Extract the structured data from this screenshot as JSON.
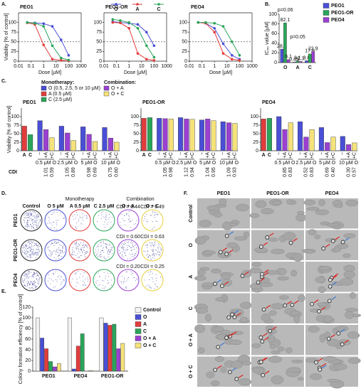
{
  "panels": {
    "a": "A.",
    "b": "B.",
    "c": "C.",
    "d": "D.",
    "e": "E.",
    "f": "F."
  },
  "chart_data": [
    {
      "type": "line",
      "title": "PEO1",
      "xlog": true,
      "x": [
        0.05,
        0.2,
        1,
        5,
        25,
        100
      ],
      "xlim": [
        0.01,
        1000
      ],
      "xticks": [
        0.01,
        0.1,
        1,
        10,
        100,
        1000
      ],
      "ylim": [
        0,
        125
      ],
      "yticks": [
        0,
        25,
        50,
        75,
        100
      ],
      "xlabel": "Dose [μM]",
      "ylabel": "Viability [% of control]",
      "reference_line": 50,
      "series": [
        {
          "color": "#4a4fd6",
          "values": [
            100,
            99,
            97,
            90,
            55,
            15
          ]
        },
        {
          "color": "#e23c3c",
          "values": [
            99,
            95,
            42,
            5,
            2,
            1
          ]
        },
        {
          "color": "#2aa55a",
          "values": [
            100,
            98,
            90,
            40,
            8,
            3
          ]
        }
      ]
    },
    {
      "type": "line",
      "title": "PEO1-OR",
      "xlog": true,
      "x": [
        0.05,
        0.2,
        1,
        5,
        25,
        100
      ],
      "xlim": [
        0.01,
        1000
      ],
      "xticks": [
        0.01,
        0.1,
        1,
        10,
        100,
        1000
      ],
      "ylim": [
        0,
        125
      ],
      "yticks": [
        0,
        25,
        50,
        75,
        100
      ],
      "xlabel": "Dose [μM]",
      "reference_line": 50,
      "series": [
        {
          "name": "O",
          "color": "#4a4fd6",
          "values": [
            102,
            100,
            98,
            95,
            75,
            40
          ]
        },
        {
          "name": "A",
          "color": "#e23c3c",
          "values": [
            100,
            99,
            85,
            20,
            5,
            2
          ]
        },
        {
          "name": "C",
          "color": "#2aa55a",
          "values": [
            108,
            105,
            100,
            85,
            40,
            10
          ]
        }
      ]
    },
    {
      "type": "line",
      "title": "PEO4",
      "xlog": true,
      "x": [
        0.05,
        0.2,
        1,
        5,
        25,
        100
      ],
      "xlim": [
        0.01,
        1000
      ],
      "xticks": [
        0.01,
        0.1,
        1,
        10,
        100,
        1000
      ],
      "ylim": [
        0,
        125
      ],
      "yticks": [
        0,
        25,
        50,
        75,
        100
      ],
      "xlabel": "Dose [μM]",
      "reference_line": 50,
      "series": [
        {
          "color": "#4a4fd6",
          "values": [
            100,
            98,
            85,
            45,
            15,
            5
          ]
        },
        {
          "color": "#e23c3c",
          "values": [
            100,
            98,
            75,
            20,
            5,
            2
          ]
        },
        {
          "color": "#2aa55a",
          "values": [
            100,
            100,
            98,
            90,
            50,
            15
          ]
        }
      ]
    },
    {
      "type": "bar",
      "ylabel": "IC₅₀ value [μM]",
      "categories": [
        "O",
        "A",
        "C"
      ],
      "ylim": [
        0,
        100
      ],
      "yticks": [
        0,
        20,
        40,
        60,
        80,
        100
      ],
      "legend": "right",
      "annotations": [
        "p=0.06",
        "p=0.05"
      ],
      "series": [
        {
          "name": "PEO1",
          "color": "#4a4fd6",
          "values": [
            28.0,
            0.85,
            3.8
          ],
          "value_labels": [
            "28.0",
            "0.85",
            "3.8"
          ]
        },
        {
          "name": "PEO1-OR",
          "color": "#2aa55a",
          "values": [
            82.1,
            3.1,
            17.8
          ],
          "value_labels": [
            "82.1",
            "3.1",
            "17.8"
          ]
        },
        {
          "name": "PEO4",
          "color": "#9b40d2",
          "values": [
            6.1,
            2.3,
            22.9
          ],
          "value_labels": [
            "6.1",
            "2.3",
            "22.9"
          ]
        }
      ]
    },
    {
      "type": "bar",
      "title": "PEO1",
      "ylabel": "Viability [% of control]",
      "ylim": [
        0,
        125
      ],
      "yticks": [
        0,
        25,
        50,
        75,
        100
      ],
      "categories": [
        "A",
        "C",
        "−",
        "+A",
        "+C",
        "−",
        "+A",
        "+C",
        "−",
        "+A",
        "+C",
        "−",
        "+A",
        "+C"
      ],
      "values": [
        72,
        47,
        88,
        62,
        38,
        72,
        52,
        30,
        70,
        48,
        27,
        68,
        37,
        25
      ],
      "colors": [
        "#e23c3c",
        "#2aa55a",
        "#4a4fd6",
        "#9b40d2",
        "#f5e27a",
        "#4a4fd6",
        "#9b40d2",
        "#f5e27a",
        "#4a4fd6",
        "#9b40d2",
        "#f5e27a",
        "#4a4fd6",
        "#9b40d2",
        "#f5e27a"
      ],
      "groups": [
        "0.5 μM O",
        "2.5 μM O",
        "5 μM O",
        "10 μM O"
      ],
      "cdi_label": "CDI",
      "cdi": [
        [
          "1.01",
          "0.59"
        ],
        [
          "1.05",
          "0.89"
        ],
        [
          "0.98",
          "0.69"
        ],
        [
          "0.75",
          "0.60"
        ]
      ],
      "legend": {
        "monotherapy_title": "Monotherapy:",
        "monotherapy": [
          {
            "label": "O (0.5, 2.5, 5 or 10 μM)",
            "color": "#4a4fd6"
          },
          {
            "label": "A (0.5 μM)",
            "color": "#e23c3c"
          },
          {
            "label": "C (2.5 μM)",
            "color": "#2aa55a"
          }
        ],
        "combination_title": "Combination:",
        "combination": [
          {
            "label": "O + A",
            "color": "#9b40d2"
          },
          {
            "label": "O + C",
            "color": "#f5e27a"
          }
        ]
      }
    },
    {
      "type": "bar",
      "title": "PEO1-OR",
      "ylim": [
        0,
        125
      ],
      "yticks": [
        0,
        25,
        50,
        75,
        100
      ],
      "categories": [
        "A",
        "C",
        "−",
        "+A",
        "+C",
        "−",
        "+A",
        "+C",
        "−",
        "+A",
        "+C",
        "−",
        "+A",
        "+C"
      ],
      "values": [
        95,
        97,
        95,
        94,
        93,
        97,
        93,
        92,
        90,
        93,
        88,
        85,
        82,
        80
      ],
      "colors": [
        "#e23c3c",
        "#2aa55a",
        "#4a4fd6",
        "#9b40d2",
        "#f5e27a",
        "#4a4fd6",
        "#9b40d2",
        "#f5e27a",
        "#4a4fd6",
        "#9b40d2",
        "#f5e27a",
        "#4a4fd6",
        "#9b40d2",
        "#f5e27a"
      ],
      "groups": [
        "0.5 μM O",
        "2.5 μM O",
        "5 μM O",
        "10 μM O"
      ],
      "cdi": [
        [
          "1.05",
          "0.98"
        ],
        [
          "1.12",
          "0.94"
        ],
        [
          "1.04",
          "0.95"
        ],
        [
          "1.09",
          "0.93"
        ]
      ]
    },
    {
      "type": "bar",
      "title": "PEO4",
      "ylim": [
        0,
        125
      ],
      "yticks": [
        0,
        25,
        50,
        75,
        100
      ],
      "categories": [
        "A",
        "C",
        "−",
        "+A",
        "+C",
        "−",
        "+A",
        "+C",
        "−",
        "+A",
        "+C",
        "−",
        "+A",
        "+C"
      ],
      "values": [
        93,
        95,
        100,
        62,
        82,
        85,
        40,
        62,
        68,
        24,
        40,
        42,
        18,
        23
      ],
      "colors": [
        "#e23c3c",
        "#2aa55a",
        "#4a4fd6",
        "#9b40d2",
        "#f5e27a",
        "#4a4fd6",
        "#9b40d2",
        "#f5e27a",
        "#4a4fd6",
        "#9b40d2",
        "#f5e27a",
        "#4a4fd6",
        "#9b40d2",
        "#f5e27a"
      ],
      "groups": [
        "0.5 μM O",
        "2.5 μM O",
        "5 μM O",
        "10 μM O"
      ],
      "cdi": [
        [
          "0.85",
          "0.83"
        ],
        [
          "0.52",
          "0.83"
        ],
        [
          "0.69",
          "0.40"
        ],
        [
          "0.30",
          "0.57"
        ]
      ]
    },
    {
      "type": "bar",
      "ylabel": "Colony formation efficiency [% of control]",
      "categories": [
        "PEO1",
        "PEO4",
        "PEO1-OR"
      ],
      "ylim": [
        0,
        120
      ],
      "yticks": [
        0,
        20,
        40,
        60,
        80,
        100,
        120
      ],
      "legend": "right",
      "series": [
        {
          "name": "Control",
          "color": "#f2f2f2",
          "values": [
            100,
            100,
            100
          ]
        },
        {
          "name": "O",
          "color": "#4a4fd6",
          "values": [
            62,
            4,
            90
          ]
        },
        {
          "name": "A",
          "color": "#e23c3c",
          "values": [
            42,
            47,
            86
          ]
        },
        {
          "name": "C",
          "color": "#2aa55a",
          "values": [
            18,
            70,
            88
          ]
        },
        {
          "name": "O + A",
          "color": "#9b40d2",
          "values": [
            8,
            0,
            42
          ]
        },
        {
          "name": "O + C",
          "color": "#f5e27a",
          "values": [
            14,
            1,
            52
          ]
        }
      ]
    }
  ],
  "panel_d": {
    "header_mono": "Monotherapy",
    "header_combo": "Combination",
    "columns": [
      "Control",
      "O  5 μM",
      "A  0.5 μM",
      "C  2.5 μM",
      "O + A",
      "O + C"
    ],
    "rows": [
      "PEO1",
      "PEO1-OR",
      "PEO4"
    ],
    "cdi": [
      [
        "CDI = 0.44",
        "CDI = 0.49"
      ],
      [
        "CDI = 0.60",
        "CDI = 0.63"
      ],
      [
        "CDI = 0.20",
        "CDI = 0.25"
      ]
    ]
  },
  "panel_f": {
    "columns": [
      "PEO1",
      "PEO1-OR",
      "PEO4"
    ],
    "rows": [
      "Control",
      "O",
      "A",
      "C",
      "O + A",
      "O + C"
    ]
  }
}
